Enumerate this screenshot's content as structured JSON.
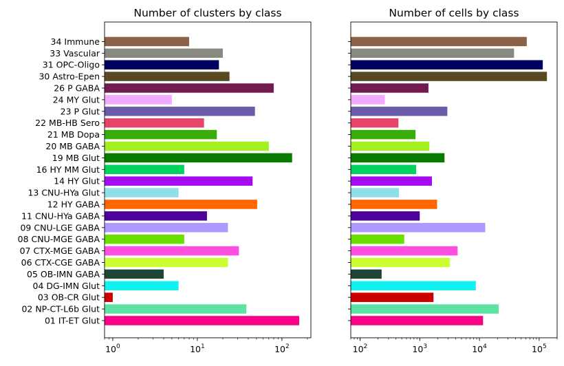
{
  "chart_data": [
    {
      "type": "bar",
      "orientation": "horizontal",
      "title": "Number of clusters by class",
      "xscale": "log",
      "xlim": [
        0.8,
        220
      ],
      "xticks": [
        {
          "value": 1,
          "base": "10",
          "exp": "0"
        },
        {
          "value": 10,
          "base": "10",
          "exp": "1"
        },
        {
          "value": 100,
          "base": "10",
          "exp": "2"
        }
      ],
      "show_category_labels": true,
      "categories": [
        "01 IT-ET Glut",
        "02 NP-CT-L6b Glut",
        "03 OB-CR Glut",
        "04 DG-IMN Glut",
        "05 OB-IMN GABA",
        "06 CTX-CGE GABA",
        "07 CTX-MGE GABA",
        "08 CNU-MGE GABA",
        "09 CNU-LGE GABA",
        "11 CNU-HYa GABA",
        "12 HY GABA",
        "13 CNU-HYa Glut",
        "14 HY Glut",
        "16 HY MM Glut",
        "19 MB Glut",
        "20 MB GABA",
        "21 MB Dopa",
        "22 MB-HB Sero",
        "23 P Glut",
        "24 MY Glut",
        "26 P GABA",
        "30 Astro-Epen",
        "31 OPC-Oligo",
        "33 Vascular",
        "34 Immune"
      ],
      "values": [
        160,
        38,
        1,
        6,
        4,
        23,
        31,
        7,
        23,
        13,
        51,
        6,
        45,
        7,
        132,
        70,
        17,
        12,
        48,
        5,
        80,
        24,
        18,
        20,
        8
      ],
      "colors": [
        "#fa0087",
        "#5ce2a3",
        "#cc0000",
        "#13f0f0",
        "#1d4734",
        "#ccff33",
        "#ff4fe0",
        "#6be000",
        "#ad99ff",
        "#4f0299",
        "#ff6600",
        "#8fdfea",
        "#a50bef",
        "#00d45f",
        "#067b00",
        "#a3ef21",
        "#39ac0a",
        "#e8436b",
        "#6c5ba8",
        "#f2aaff",
        "#731b51",
        "#594822",
        "#00005e",
        "#888a80",
        "#8b6248"
      ]
    },
    {
      "type": "bar",
      "orientation": "horizontal",
      "title": "Number of cells by class",
      "xscale": "log",
      "xlim": [
        70,
        200000
      ],
      "xticks": [
        {
          "value": 100,
          "base": "10",
          "exp": "2"
        },
        {
          "value": 1000,
          "base": "10",
          "exp": "3"
        },
        {
          "value": 10000,
          "base": "10",
          "exp": "4"
        },
        {
          "value": 100000,
          "base": "10",
          "exp": "5"
        }
      ],
      "show_category_labels": false,
      "categories": [
        "01 IT-ET Glut",
        "02 NP-CT-L6b Glut",
        "03 OB-CR Glut",
        "04 DG-IMN Glut",
        "05 OB-IMN GABA",
        "06 CTX-CGE GABA",
        "07 CTX-MGE GABA",
        "08 CNU-MGE GABA",
        "09 CNU-LGE GABA",
        "11 CNU-HYa GABA",
        "12 HY GABA",
        "13 CNU-HYa Glut",
        "14 HY Glut",
        "16 HY MM Glut",
        "19 MB Glut",
        "20 MB GABA",
        "21 MB Dopa",
        "22 MB-HB Sero",
        "23 P Glut",
        "24 MY Glut",
        "26 P GABA",
        "30 Astro-Epen",
        "31 OPC-Oligo",
        "33 Vascular",
        "34 Immune"
      ],
      "values": [
        11500,
        21000,
        1700,
        8700,
        230,
        3200,
        4300,
        550,
        12500,
        1000,
        1950,
        450,
        1600,
        870,
        2600,
        1450,
        850,
        440,
        2900,
        260,
        1400,
        135000,
        115000,
        38000,
        62000
      ],
      "colors": [
        "#fa0087",
        "#5ce2a3",
        "#cc0000",
        "#13f0f0",
        "#1d4734",
        "#ccff33",
        "#ff4fe0",
        "#6be000",
        "#ad99ff",
        "#4f0299",
        "#ff6600",
        "#8fdfea",
        "#a50bef",
        "#00d45f",
        "#067b00",
        "#a3ef21",
        "#39ac0a",
        "#e8436b",
        "#6c5ba8",
        "#f2aaff",
        "#731b51",
        "#594822",
        "#00005e",
        "#888a80",
        "#8b6248"
      ]
    }
  ]
}
